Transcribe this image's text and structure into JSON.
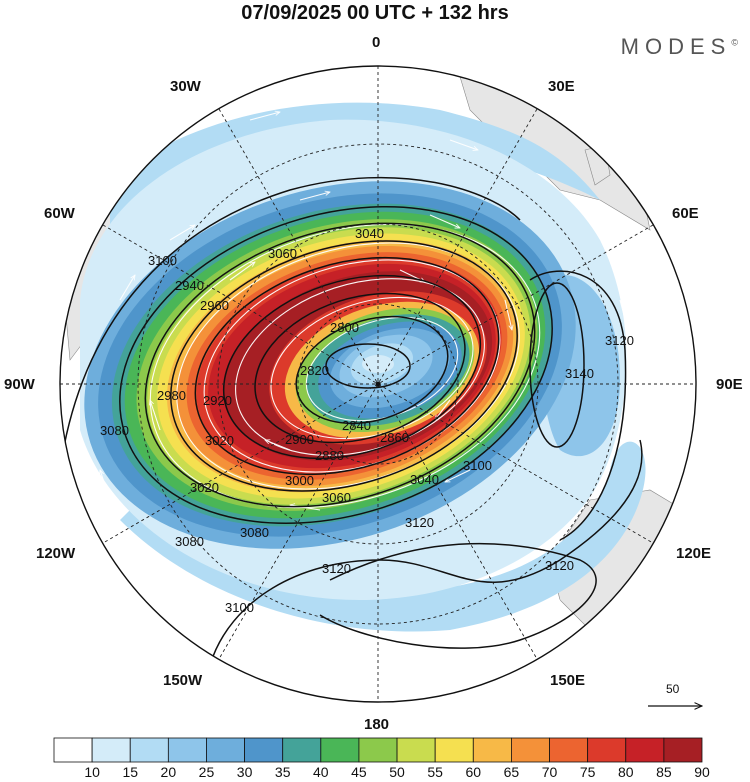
{
  "header": {
    "title": "07/09/2025  00 UTC  + 132 hrs",
    "logo": "MODES",
    "logo_mark": "©"
  },
  "longitude_labels": {
    "top": "0",
    "top_right": "30E",
    "right_upper": "60E",
    "right": "90E",
    "right_lower": "120E",
    "bottom_right": "150E",
    "bottom": "180",
    "bottom_left": "150W",
    "left_lower": "120W",
    "left": "90W",
    "left_upper": "60W",
    "top_left": "30W"
  },
  "contour_labels": [
    "2800",
    "2820",
    "2840",
    "2860",
    "2880",
    "2900",
    "2920",
    "2940",
    "2960",
    "2980",
    "3000",
    "3020",
    "3040",
    "3060",
    "3080",
    "3100",
    "3120",
    "3140"
  ],
  "legend": {
    "reference_vector": "50",
    "colorbar_ticks": [
      "10",
      "15",
      "20",
      "25",
      "30",
      "35",
      "40",
      "45",
      "50",
      "55",
      "60",
      "65",
      "70",
      "75",
      "80",
      "85",
      "90"
    ],
    "colors": [
      "#ffffff",
      "#d4ecf9",
      "#b2dcf4",
      "#8ec5ea",
      "#6eaedc",
      "#4f95cb",
      "#44a399",
      "#4ab657",
      "#8cc94b",
      "#c9dc4f",
      "#f5e050",
      "#f7b947",
      "#f49139",
      "#ec6430",
      "#dc3a2b",
      "#c62127",
      "#a61f24"
    ]
  },
  "chart_data": {
    "type": "heatmap",
    "title": "07/09/2025  00 UTC  + 132 hrs",
    "projection": "south polar stereographic",
    "field": "wind speed shaded with geopotential height contours and streamlines",
    "shading_levels": [
      10,
      15,
      20,
      25,
      30,
      35,
      40,
      45,
      50,
      55,
      60,
      65,
      70,
      75,
      80,
      85,
      90
    ],
    "contour_levels": [
      2800,
      2820,
      2840,
      2860,
      2880,
      2900,
      2920,
      2940,
      2960,
      2980,
      3000,
      3020,
      3040,
      3060,
      3080,
      3100,
      3120,
      3140
    ],
    "vector_reference": 50
  }
}
